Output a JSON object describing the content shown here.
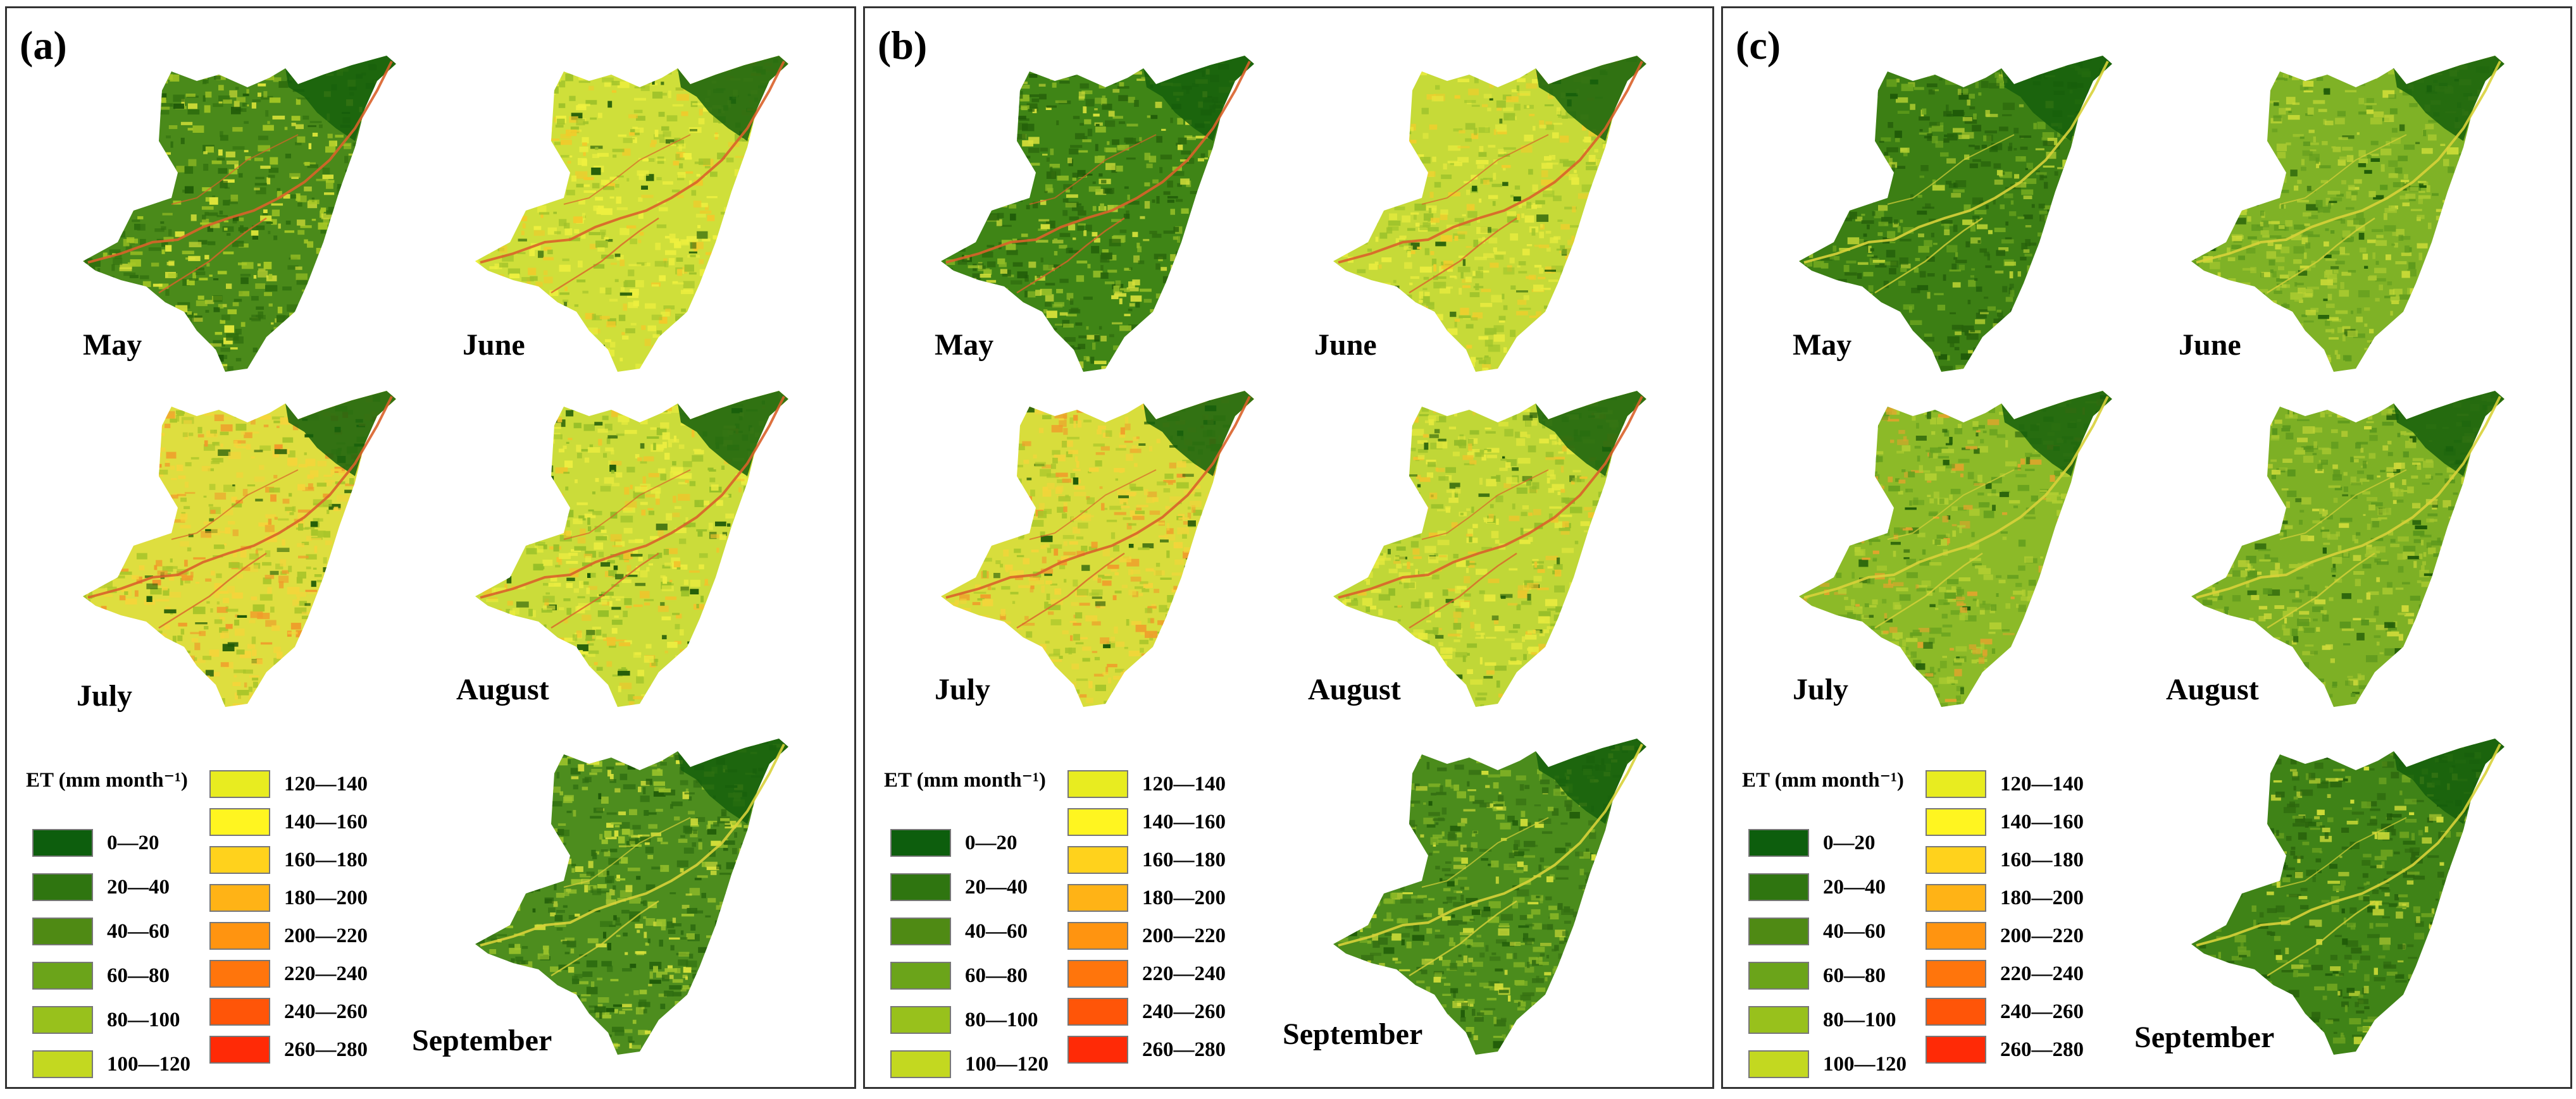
{
  "figure": {
    "panels": [
      {
        "label": "(a)",
        "maps": [
          {
            "month": "May",
            "base": "#4a8a1a",
            "tex": [
              "#2f6e0e",
              "#a6c825",
              "#e0e63a",
              "#1f5a08"
            ]
          },
          {
            "month": "June",
            "base": "#cfdf3a",
            "tex": [
              "#eef03f",
              "#9fc22a",
              "#f3c92a",
              "#1f5a08"
            ]
          },
          {
            "month": "July",
            "base": "#dede3f",
            "tex": [
              "#f5d43a",
              "#a9c52a",
              "#f09a2a",
              "#1f5a08"
            ]
          },
          {
            "month": "August",
            "base": "#cbdc3a",
            "tex": [
              "#eced40",
              "#95be28",
              "#f2c32b",
              "#1f5a08"
            ]
          },
          {
            "month": "September",
            "base": "#4d8d1e",
            "tex": [
              "#2e6c10",
              "#9cc42c",
              "#d9e23b",
              "#1f5a08"
            ]
          }
        ]
      },
      {
        "label": "(b)",
        "maps": [
          {
            "month": "May",
            "base": "#3f8516",
            "tex": [
              "#2a660c",
              "#8fbb26",
              "#d6e03a",
              "#1f5a08"
            ]
          },
          {
            "month": "June",
            "base": "#c6da38",
            "tex": [
              "#e9ec3f",
              "#9cc22b",
              "#f0cd2c",
              "#1f5a08"
            ]
          },
          {
            "month": "July",
            "base": "#d8dd3c",
            "tex": [
              "#f3d43a",
              "#a6c52a",
              "#ef9e2b",
              "#1f5a08"
            ]
          },
          {
            "month": "August",
            "base": "#c0d737",
            "tex": [
              "#e7ea3e",
              "#93bc28",
              "#efc52c",
              "#1f5a08"
            ]
          },
          {
            "month": "September",
            "base": "#4b8c1c",
            "tex": [
              "#346f12",
              "#85b526",
              "#d4df39",
              "#1f5a08"
            ]
          }
        ]
      },
      {
        "label": "(c)",
        "maps": [
          {
            "month": "May",
            "base": "#3c7f14",
            "tex": [
              "#27620b",
              "#6fa71f",
              "#b8d132",
              "#1f5a08"
            ]
          },
          {
            "month": "June",
            "base": "#7fb226",
            "tex": [
              "#a8c930",
              "#5e9a1d",
              "#c9da37",
              "#1f5a08"
            ]
          },
          {
            "month": "July",
            "base": "#8cba28",
            "tex": [
              "#b2cf32",
              "#66a01e",
              "#e0a42c",
              "#1f5a08"
            ]
          },
          {
            "month": "August",
            "base": "#7db025",
            "tex": [
              "#a6c72f",
              "#5a961c",
              "#cdd939",
              "#1f5a08"
            ]
          },
          {
            "month": "September",
            "base": "#3f8317",
            "tex": [
              "#2b650d",
              "#6ea420",
              "#cfdc38",
              "#1f5a08"
            ]
          }
        ]
      }
    ],
    "legend": {
      "title": "ET (mm month⁻¹)",
      "classes": [
        {
          "label": "0—20",
          "color": "#0d5e0d"
        },
        {
          "label": "20—40",
          "color": "#2f7510"
        },
        {
          "label": "40—60",
          "color": "#4f8a14"
        },
        {
          "label": "60—80",
          "color": "#6ba41a"
        },
        {
          "label": "80—100",
          "color": "#98c11c"
        },
        {
          "label": "100—120",
          "color": "#c3d820"
        },
        {
          "label": "120—140",
          "color": "#e8ec20"
        },
        {
          "label": "140—160",
          "color": "#fff520"
        },
        {
          "label": "160—180",
          "color": "#ffd21c"
        },
        {
          "label": "180—200",
          "color": "#ffb316"
        },
        {
          "label": "200—220",
          "color": "#ff9410"
        },
        {
          "label": "220—240",
          "color": "#ff750c"
        },
        {
          "label": "240—260",
          "color": "#ff5508"
        },
        {
          "label": "260—280",
          "color": "#ff2a06"
        }
      ]
    }
  }
}
